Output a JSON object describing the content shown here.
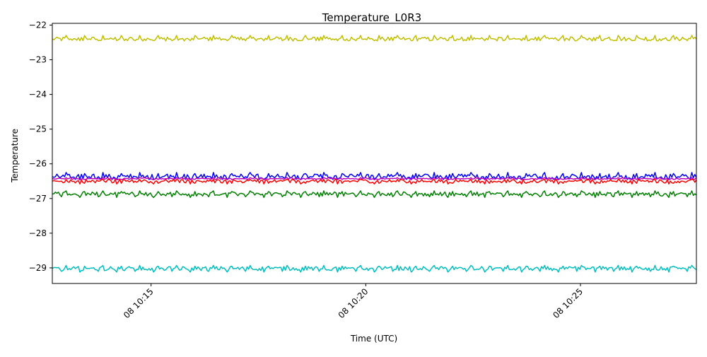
{
  "chart_data": {
    "type": "line",
    "title": "Temperature_L0R3",
    "xlabel": "Time (UTC)",
    "ylabel": "Temperature",
    "xlim": [
      "08 10:12:42",
      "08 10:27:42"
    ],
    "ylim": [
      -29.45,
      -21.95
    ],
    "x_ticks": [
      "08 10:15",
      "08 10:20",
      "08 10:25"
    ],
    "y_ticks": [
      -22,
      -23,
      -24,
      -25,
      -26,
      -27,
      -28,
      -29
    ],
    "grid": false,
    "legend": "none",
    "x_range": [
      "08 10:12:42",
      "08 10:27:42"
    ],
    "series_description": "dense noisy sensor readings; each series fluctuates around its level",
    "series": [
      {
        "color": "#bfbf00",
        "level": -22.4,
        "values": [
          -22.4,
          -22.3,
          -22.45,
          -22.35,
          -22.4,
          -22.3,
          -22.45,
          -22.4
        ]
      },
      {
        "color": "#0000ff",
        "level": -26.37,
        "values": [
          -26.37,
          -26.25,
          -26.45,
          -26.3,
          -26.4,
          -26.28,
          -26.37,
          -26.45
        ]
      },
      {
        "color": "#bf00bf",
        "level": -26.43,
        "values": [
          -26.43,
          -26.4,
          -26.46,
          -26.43,
          -26.4,
          -26.45,
          -26.43,
          -26.42
        ]
      },
      {
        "color": "#ff0000",
        "level": -26.5,
        "values": [
          -26.5,
          -26.45,
          -26.58,
          -26.5,
          -26.46,
          -26.56,
          -26.5,
          -26.55
        ]
      },
      {
        "color": "#008000",
        "level": -26.87,
        "values": [
          -26.87,
          -26.78,
          -26.97,
          -26.85,
          -26.9,
          -26.8,
          -26.95,
          -26.87
        ]
      },
      {
        "color": "#00bfbf",
        "level": -29.02,
        "values": [
          -29.02,
          -28.93,
          -29.12,
          -29.0,
          -29.05,
          -28.95,
          -29.1,
          -29.02
        ]
      }
    ]
  }
}
